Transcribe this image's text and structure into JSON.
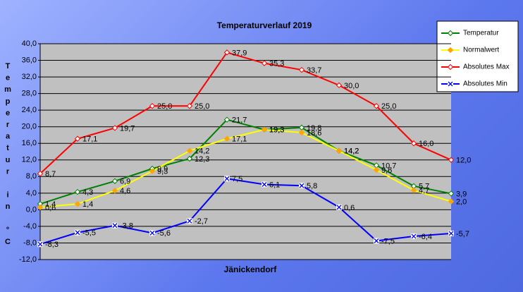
{
  "chart_data": {
    "type": "line",
    "title": "Temperaturverlauf  2019",
    "x_label": "Jänickendorf",
    "y_label": "Temperatur in °C",
    "categories": [
      null,
      null,
      null,
      null,
      null,
      null,
      null,
      null,
      null,
      null,
      null,
      null
    ],
    "ylim": [
      -12,
      40
    ],
    "yticks": [
      {
        "value": -12,
        "label": "-12,0"
      },
      {
        "value": -8,
        "label": "-8,0"
      },
      {
        "value": -4,
        "label": "-4,0"
      },
      {
        "value": 0,
        "label": "0,0"
      },
      {
        "value": 4,
        "label": "4,0"
      },
      {
        "value": 8,
        "label": "8,0"
      },
      {
        "value": 12,
        "label": "12,0"
      },
      {
        "value": 16,
        "label": "16,0"
      },
      {
        "value": 20,
        "label": "20,0"
      },
      {
        "value": 24,
        "label": "24,0"
      },
      {
        "value": 28,
        "label": "28,0"
      },
      {
        "value": 32,
        "label": "32,0"
      },
      {
        "value": 36,
        "label": "36,0"
      },
      {
        "value": 40,
        "label": "40,0"
      }
    ],
    "grid": true,
    "legend": "top-right",
    "series": [
      {
        "name": "Temperatur",
        "color": "#008000",
        "marker": "diamond-open",
        "values": [
          1.4,
          4.3,
          6.9,
          9.9,
          12.3,
          21.7,
          19.3,
          19.8,
          14.2,
          10.7,
          5.7,
          3.9
        ],
        "value_labels": [
          "1,4",
          "4,3",
          "6,9",
          "9,9",
          "12,3",
          "21,7",
          "19,3",
          "19,8",
          "14,2",
          "10,7",
          "5,7",
          "3,9"
        ]
      },
      {
        "name": "Normalwert",
        "color": "#ffff00",
        "marker": "diamond-filled",
        "values": [
          0.6,
          1.4,
          4.6,
          9.3,
          14.2,
          17.1,
          19.3,
          18.6,
          14.2,
          9.6,
          4.7,
          2.0
        ],
        "value_labels": [
          "0,6",
          "1,4",
          "4,6",
          "9,3",
          "14,2",
          "17,1",
          "19,3",
          "18,6",
          "14,2",
          "9,6",
          "4,7",
          "2,0"
        ]
      },
      {
        "name": "Absolutes Max",
        "color": "#ff0000",
        "marker": "diamond-open",
        "values": [
          8.7,
          17.1,
          19.7,
          25.0,
          25.0,
          37.9,
          35.3,
          33.7,
          30.0,
          25.0,
          16.0,
          12.0
        ],
        "value_labels": [
          "8,7",
          "17,1",
          "19,7",
          "25,0",
          "25,0",
          "37,9",
          "35,3",
          "33,7",
          "30,0",
          "25,0",
          "16,0",
          "12,0"
        ]
      },
      {
        "name": "Absolutes Min",
        "color": "#0000ff",
        "marker": "x-box",
        "values": [
          -8.3,
          -5.5,
          -3.8,
          -5.6,
          -2.7,
          7.5,
          6.1,
          5.8,
          0.6,
          -7.5,
          -6.4,
          -5.7
        ],
        "value_labels": [
          "-8,3",
          "-5,5",
          "-3,8",
          "-5,6",
          "-2,7",
          "7,5",
          "6,1",
          "5,8",
          "0,6",
          "-7,5",
          "-6,4",
          "-5,7"
        ]
      }
    ]
  }
}
